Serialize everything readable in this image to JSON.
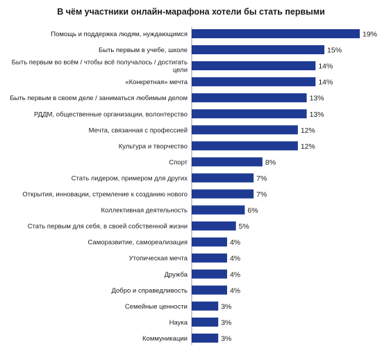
{
  "chart_data": {
    "type": "bar",
    "orientation": "horizontal",
    "title": "В чём участники онлайн-марафона хотели бы стать первыми",
    "categories": [
      [
        "Помощь и поддержка людям, нуждающимся"
      ],
      [
        "Быть первым в учебе, школе"
      ],
      [
        "Быть первым во всём / чтобы всё получалось / достигать",
        "цели"
      ],
      [
        "«Конкретная» мечта"
      ],
      [
        "Быть первым в своем деле / заниматься любимым делом"
      ],
      [
        "РДДМ, общественные организации, волонтерство"
      ],
      [
        "Мечта, связанная с профессией"
      ],
      [
        "Культура и творчество"
      ],
      [
        "Спорт"
      ],
      [
        "Стать лидером, примером для других"
      ],
      [
        "Открытия, инновации, стремление к созданию нового"
      ],
      [
        "Коллективная деятельность"
      ],
      [
        "Стать первым для себя, в своей собственной жизни"
      ],
      [
        "Саморазвитие, самореализация"
      ],
      [
        "Утопическая мечта"
      ],
      [
        "Дружба"
      ],
      [
        "Добро и справедливость"
      ],
      [
        "Семейные ценности"
      ],
      [
        "Наука"
      ],
      [
        "Коммуникации"
      ]
    ],
    "values": [
      19,
      15,
      14,
      14,
      13,
      13,
      12,
      12,
      8,
      7,
      7,
      6,
      5,
      4,
      4,
      4,
      4,
      3,
      3,
      3
    ],
    "value_labels": [
      "19%",
      "15%",
      "14%",
      "14%",
      "13%",
      "13%",
      "12%",
      "12%",
      "8%",
      "7%",
      "7%",
      "6%",
      "5%",
      "4%",
      "4%",
      "4%",
      "4%",
      "3%",
      "3%",
      "3%"
    ],
    "bar_color": "#1f3a93",
    "xlim": [
      0,
      19
    ],
    "grid": false,
    "legend": "none"
  }
}
